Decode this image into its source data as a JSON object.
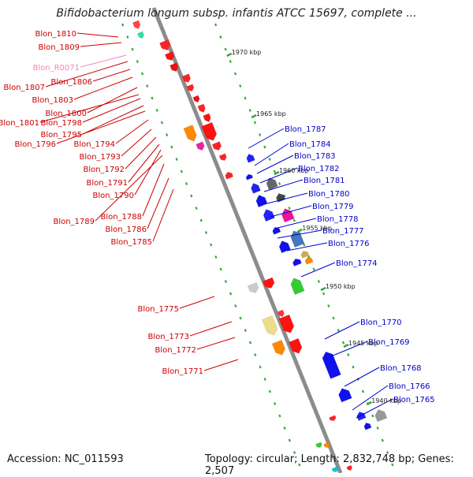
{
  "title": "Bifidobacterium longum subsp. infantis ATCC 15697, complete ...",
  "footer": {
    "accession": "Accession: NC_011593",
    "summary": "Topology: circular; Length: 2,832,748 bp; Genes: 2,507"
  },
  "colors": {
    "forward_label": "#cc0000",
    "reverse_label": "#0000cc",
    "rna_label": "#ee88bb",
    "backbone": "#8c8c8c",
    "scale_tick": "#33aa33"
  },
  "scale_ticks": [
    "1970 kbp",
    "1965 kbp",
    "1960 kbp",
    "1955 kbp",
    "1950 kbp",
    "1945 kbp",
    "1940 kbp"
  ],
  "left_labels": [
    "Blon_1810",
    "Blon_1809",
    "Blon_R0071",
    "Blon_1807",
    "Blon_1806",
    "Blon_1803",
    "Blon_1800",
    "Blon_1801",
    "Blon_1798",
    "Blon_1795",
    "Blon_1796",
    "Blon_1794",
    "Blon_1793",
    "Blon_1792",
    "Blon_1791",
    "Blon_1790",
    "Blon_1789",
    "Blon_1788",
    "Blon_1786",
    "Blon_1785",
    "Blon_1775",
    "Blon_1773",
    "Blon_1772",
    "Blon_1771"
  ],
  "right_labels": [
    "Blon_1787",
    "Blon_1784",
    "Blon_1783",
    "Blon_1782",
    "Blon_1781",
    "Blon_1780",
    "Blon_1779",
    "Blon_1778",
    "Blon_1777",
    "Blon_1776",
    "Blon_1774",
    "Blon_1770",
    "Blon_1769",
    "Blon_1768",
    "Blon_1766",
    "Blon_1765"
  ]
}
